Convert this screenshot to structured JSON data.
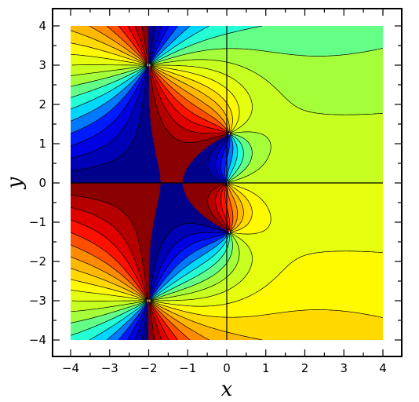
{
  "chart_data": {
    "type": "heatmap",
    "title": "",
    "xlabel": "x",
    "ylabel": "y",
    "xlim": [
      -4,
      4
    ],
    "ylim": [
      -4,
      4
    ],
    "x_ticks": [
      -4,
      -3,
      -2,
      -1,
      0,
      1,
      2,
      3,
      4
    ],
    "y_ticks": [
      -4,
      -3,
      -2,
      -1,
      0,
      1,
      2,
      3,
      4
    ],
    "x_tick_labels": [
      "−4",
      "−3",
      "−2",
      "−1",
      "0",
      "1",
      "2",
      "3",
      "4"
    ],
    "y_tick_labels": [
      "−4",
      "−3",
      "−2",
      "−1",
      "0",
      "1",
      "2",
      "3",
      "4"
    ],
    "grid": false,
    "reference_lines": [
      {
        "axis": "x",
        "value": 0
      },
      {
        "axis": "y",
        "value": 0
      }
    ],
    "colormap": [
      "#00008b",
      "#0000ff",
      "#00ffff",
      "#adff2f",
      "#ffff00",
      "#ffa500",
      "#ff0000",
      "#8b0000"
    ],
    "contour_line_color": "#000000",
    "frame_color": "#000000",
    "background": "#ffffff"
  }
}
